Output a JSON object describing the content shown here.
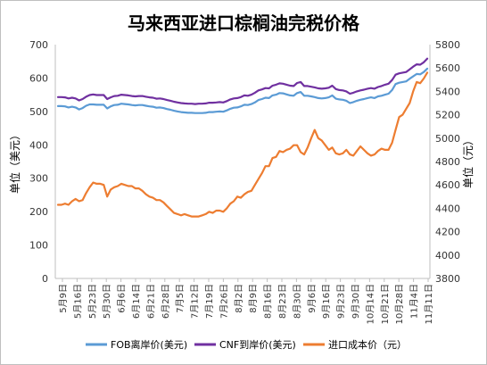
{
  "chart_data": {
    "type": "line",
    "title": "马来西亚进口棕榈油完税价格",
    "ylabel_left": "单位（美元）",
    "ylabel_right": "单位（元）",
    "ylim_left": [
      0,
      700
    ],
    "ylim_right": [
      3800,
      5800
    ],
    "yticks_left": [
      "0",
      "100",
      "200",
      "300",
      "400",
      "500",
      "600",
      "700"
    ],
    "yticks_right": [
      "3800",
      "4000",
      "4200",
      "4400",
      "4600",
      "4800",
      "5000",
      "5200",
      "5400",
      "5600",
      "5800"
    ],
    "x_tick_labels": [
      "5月9日",
      "5月16日",
      "5月23日",
      "5月30日",
      "6月6日",
      "6月14日",
      "6月21日",
      "6月28日",
      "7月5日",
      "7月12日",
      "7月19日",
      "7月26日",
      "8月2日",
      "8月9日",
      "8月16日",
      "8月23日",
      "8月30日",
      "9月6日",
      "9月16日",
      "9月23日",
      "9月30日",
      "10月14日",
      "10月21日",
      "10月28日",
      "11月4日",
      "11月11日"
    ],
    "legend_position": "bottom",
    "grid": false,
    "series": [
      {
        "name": "FOB离岸价(美元)",
        "axis": "left",
        "color": "#5b9bd5",
        "values": [
          516,
          516,
          515,
          512,
          514,
          512,
          506,
          510,
          517,
          521,
          521,
          520,
          520,
          520,
          509,
          515,
          519,
          520,
          523,
          522,
          521,
          519,
          518,
          519,
          519,
          517,
          515,
          514,
          511,
          512,
          510,
          507,
          505,
          502,
          500,
          498,
          497,
          496,
          496,
          495,
          495,
          495,
          496,
          498,
          498,
          499,
          500,
          499,
          503,
          508,
          511,
          512,
          515,
          520,
          519,
          522,
          527,
          534,
          537,
          541,
          540,
          548,
          550,
          555,
          554,
          551,
          548,
          547,
          555,
          558,
          547,
          547,
          545,
          543,
          540,
          539,
          540,
          542,
          548,
          538,
          536,
          535,
          532,
          525,
          528,
          532,
          535,
          537,
          540,
          542,
          540,
          545,
          547,
          550,
          553,
          564,
          582,
          586,
          588,
          590,
          598,
          605,
          612,
          611,
          618,
          628
        ]
      },
      {
        "name": "CNF到岸价(美元)",
        "axis": "left",
        "color": "#7030a0",
        "values": [
          543,
          543,
          542,
          539,
          541,
          539,
          533,
          537,
          544,
          549,
          551,
          549,
          549,
          549,
          537,
          542,
          546,
          547,
          550,
          549,
          548,
          546,
          545,
          546,
          546,
          544,
          542,
          541,
          538,
          539,
          537,
          534,
          532,
          529,
          527,
          525,
          524,
          523,
          523,
          522,
          523,
          523,
          524,
          526,
          526,
          527,
          528,
          527,
          531,
          536,
          539,
          540,
          543,
          548,
          547,
          550,
          556,
          563,
          566,
          570,
          569,
          577,
          580,
          584,
          583,
          580,
          577,
          576,
          585,
          588,
          576,
          576,
          574,
          572,
          569,
          568,
          569,
          571,
          577,
          567,
          564,
          563,
          560,
          553,
          556,
          560,
          563,
          565,
          568,
          570,
          568,
          573,
          576,
          580,
          583,
          594,
          610,
          614,
          616,
          618,
          626,
          634,
          641,
          640,
          647,
          658
        ]
      },
      {
        "name": "进口成本价（元）",
        "axis": "right",
        "color": "#ed7d31",
        "values": [
          4430,
          4430,
          4440,
          4430,
          4460,
          4480,
          4460,
          4470,
          4530,
          4580,
          4620,
          4610,
          4610,
          4600,
          4500,
          4560,
          4580,
          4590,
          4610,
          4600,
          4590,
          4590,
          4570,
          4570,
          4550,
          4520,
          4500,
          4490,
          4470,
          4470,
          4450,
          4420,
          4390,
          4360,
          4350,
          4340,
          4350,
          4340,
          4330,
          4330,
          4330,
          4340,
          4350,
          4370,
          4360,
          4380,
          4380,
          4370,
          4400,
          4440,
          4460,
          4500,
          4490,
          4520,
          4540,
          4550,
          4600,
          4650,
          4700,
          4760,
          4760,
          4830,
          4840,
          4890,
          4880,
          4900,
          4910,
          4940,
          4940,
          4880,
          4860,
          4920,
          5000,
          5070,
          5000,
          4980,
          4940,
          4900,
          4920,
          4870,
          4860,
          4870,
          4900,
          4860,
          4850,
          4890,
          4930,
          4900,
          4870,
          4850,
          4860,
          4890,
          4910,
          4900,
          4900,
          4960,
          5070,
          5180,
          5200,
          5250,
          5300,
          5400,
          5480,
          5470,
          5510,
          5560
        ]
      }
    ]
  }
}
